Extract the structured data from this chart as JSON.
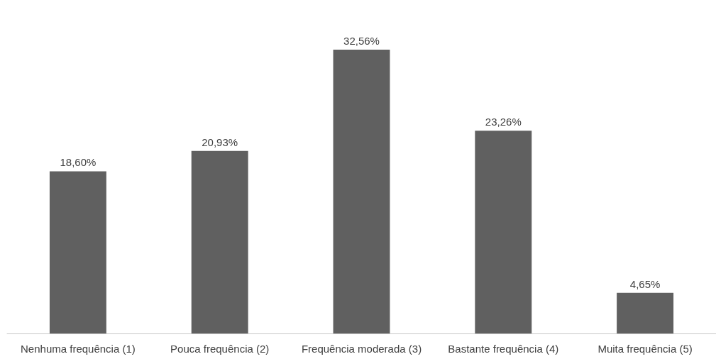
{
  "chart_data": {
    "type": "bar",
    "categories": [
      "Nenhuma frequência (1)",
      "Pouca frequência (2)",
      "Frequência moderada (3)",
      "Bastante frequência (4)",
      "Muita frequência (5)"
    ],
    "values": [
      18.6,
      20.93,
      32.56,
      23.26,
      4.65
    ],
    "value_labels": [
      "18,60%",
      "20,93%",
      "32,56%",
      "23,26%",
      "4,65%"
    ],
    "color": "#606060",
    "grid": false
  }
}
